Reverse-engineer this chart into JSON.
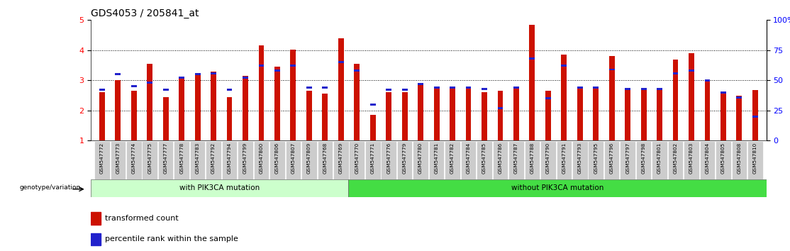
{
  "title": "GDS4053 / 205841_at",
  "samples": [
    "GSM547772",
    "GSM547773",
    "GSM547774",
    "GSM547775",
    "GSM547777",
    "GSM547778",
    "GSM547783",
    "GSM547792",
    "GSM547794",
    "GSM547799",
    "GSM547800",
    "GSM547806",
    "GSM547807",
    "GSM547809",
    "GSM547768",
    "GSM547769",
    "GSM547770",
    "GSM547771",
    "GSM547776",
    "GSM547779",
    "GSM547780",
    "GSM547781",
    "GSM547782",
    "GSM547784",
    "GSM547785",
    "GSM547786",
    "GSM547787",
    "GSM547788",
    "GSM547790",
    "GSM547791",
    "GSM547793",
    "GSM547795",
    "GSM547796",
    "GSM547797",
    "GSM547798",
    "GSM547801",
    "GSM547802",
    "GSM547803",
    "GSM547804",
    "GSM547805",
    "GSM547808",
    "GSM547810"
  ],
  "transformed_count": [
    2.6,
    3.0,
    2.65,
    3.55,
    2.45,
    3.1,
    3.25,
    3.3,
    2.45,
    3.15,
    4.15,
    3.45,
    4.02,
    2.65,
    2.55,
    4.4,
    3.55,
    1.85,
    2.6,
    2.6,
    2.9,
    2.75,
    2.75,
    2.75,
    2.6,
    2.65,
    2.75,
    4.85,
    2.65,
    3.85,
    2.75,
    2.72,
    3.8,
    2.7,
    2.7,
    2.68,
    3.7,
    3.9,
    3.0,
    2.6,
    2.5,
    2.68
  ],
  "percentile_rank_pct": [
    42,
    55,
    45,
    48,
    42,
    52,
    55,
    56,
    42,
    52,
    62,
    58,
    62,
    44,
    44,
    65,
    58,
    30,
    42,
    42,
    47,
    44,
    44,
    44,
    43,
    27,
    44,
    68,
    35,
    62,
    44,
    44,
    59,
    43,
    43,
    43,
    56,
    58,
    50,
    40,
    36,
    20
  ],
  "n_with_mutation": 16,
  "ylim_left": [
    1,
    5
  ],
  "ylim_right": [
    0,
    100
  ],
  "yticks_left": [
    1,
    2,
    3,
    4,
    5
  ],
  "yticks_right": [
    0,
    25,
    50,
    75,
    100
  ],
  "ytick_right_labels": [
    "0",
    "25",
    "50",
    "75",
    "100%"
  ],
  "bar_color": "#cc1100",
  "percentile_color": "#2222cc",
  "bg_with": "#ccffcc",
  "bg_without": "#44dd44",
  "label_bg": "#cccccc",
  "legend_red_label": "transformed count",
  "legend_blue_label": "percentile rank within the sample",
  "group_label_with": "with PIK3CA mutation",
  "group_label_without": "without PIK3CA mutation",
  "genotype_label": "genotype/variation"
}
